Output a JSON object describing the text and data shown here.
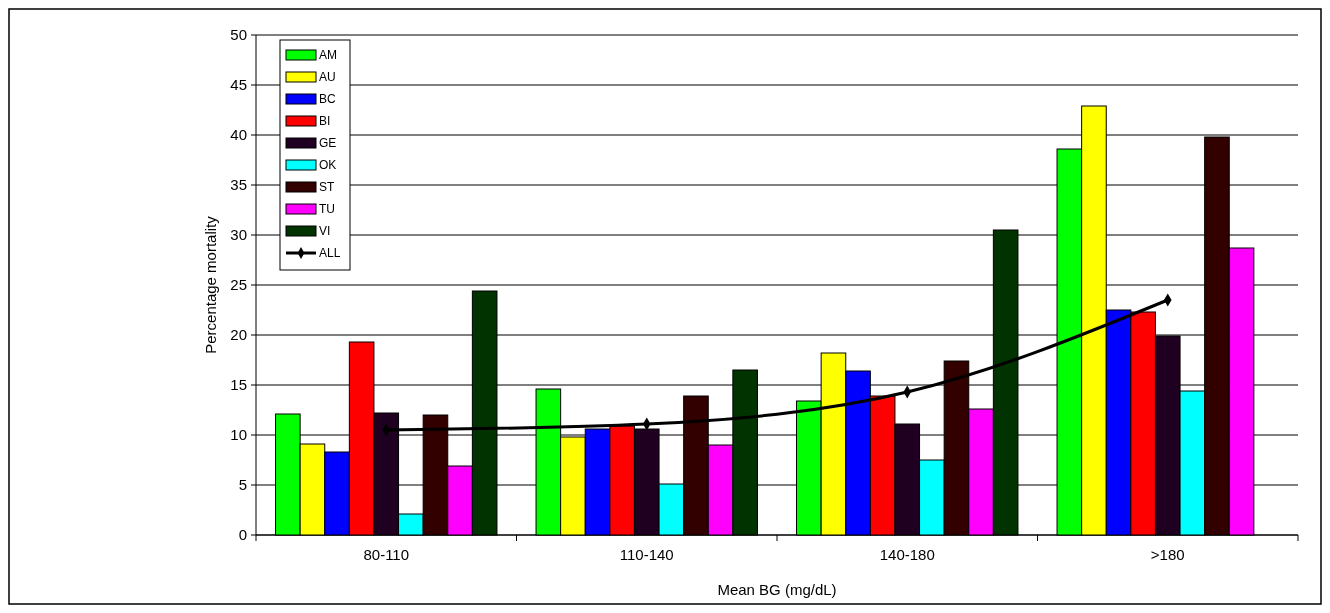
{
  "chart_data": {
    "type": "bar",
    "xlabel": "Mean BG (mg/dL)",
    "ylabel": "Percentage mortality",
    "categories": [
      "80-110",
      "110-140",
      "140-180",
      ">180"
    ],
    "series": [
      {
        "name": "AM",
        "color": "#00ff00",
        "values": [
          12.1,
          14.6,
          13.4,
          38.6
        ]
      },
      {
        "name": "AU",
        "color": "#ffff00",
        "values": [
          9.1,
          9.8,
          18.2,
          42.9
        ]
      },
      {
        "name": "BC",
        "color": "#0000ff",
        "values": [
          8.3,
          10.6,
          16.4,
          22.5
        ]
      },
      {
        "name": "BI",
        "color": "#ff0000",
        "values": [
          19.3,
          10.9,
          13.9,
          22.3
        ]
      },
      {
        "name": "GE",
        "color": "#200020",
        "values": [
          12.2,
          10.6,
          11.1,
          19.9
        ]
      },
      {
        "name": "OK",
        "color": "#00ffff",
        "values": [
          2.1,
          5.1,
          7.5,
          14.4
        ]
      },
      {
        "name": "ST",
        "color": "#330000",
        "values": [
          12.0,
          13.9,
          17.4,
          39.8
        ]
      },
      {
        "name": "TU",
        "color": "#ff00ff",
        "values": [
          6.9,
          9.0,
          12.6,
          28.7
        ]
      },
      {
        "name": "VI",
        "color": "#003300",
        "values": [
          24.4,
          16.5,
          30.5,
          null
        ]
      },
      {
        "name": "ALL",
        "color": "#000000",
        "type": "line",
        "marker": "diamond",
        "values": [
          10.5,
          11.1,
          14.3,
          23.5
        ]
      }
    ],
    "ylim": [
      0,
      50
    ],
    "yticks": [
      0,
      5,
      10,
      15,
      20,
      25,
      30,
      35,
      40,
      45,
      50
    ],
    "grid": "y",
    "legend": "top left"
  }
}
